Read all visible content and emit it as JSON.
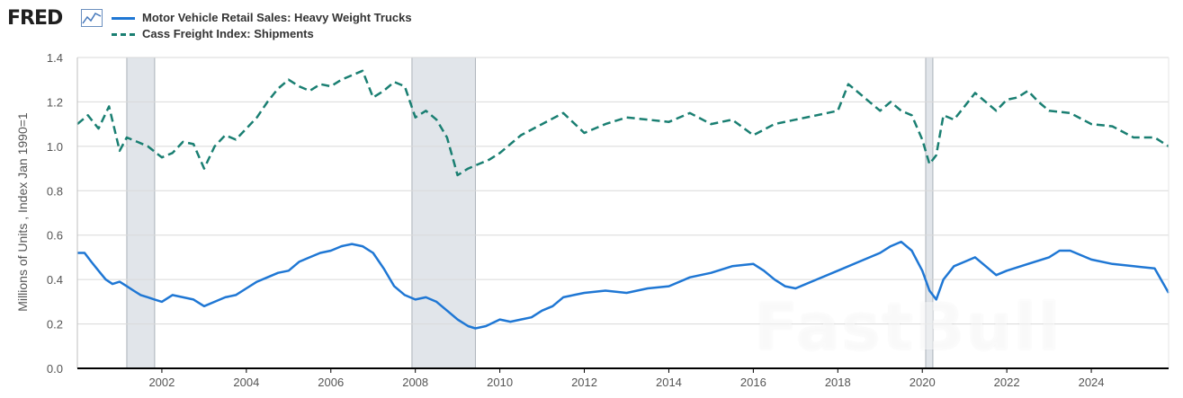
{
  "header": {
    "logo_text": "FRED",
    "logo_icon": "trend-line-icon"
  },
  "colors": {
    "trucks": "#1f77d4",
    "freight": "#1a7f72",
    "recession": "#e1e5ea",
    "grid": "#d9d9d9"
  },
  "watermark": "FastBull",
  "chart_data": {
    "type": "line",
    "title": "",
    "xlabel": "",
    "ylabel": "Millions of Units , Index Jan 1990=1",
    "xlim": [
      2000.0,
      2025.83
    ],
    "ylim": [
      0.0,
      1.4
    ],
    "yticks": [
      "0.0",
      "0.2",
      "0.4",
      "0.6",
      "0.8",
      "1.0",
      "1.2",
      "1.4"
    ],
    "xticks": [
      "2002",
      "2004",
      "2006",
      "2008",
      "2010",
      "2012",
      "2014",
      "2016",
      "2018",
      "2020",
      "2022",
      "2024"
    ],
    "legend": "top-left",
    "recessions": [
      [
        2001.17,
        2001.83
      ],
      [
        2007.92,
        2009.42
      ],
      [
        2020.08,
        2020.25
      ]
    ],
    "series": [
      {
        "name": "Motor Vehicle Retail Sales: Heavy Weight Trucks",
        "style": "solid",
        "x": [
          2000.0,
          2000.17,
          2000.33,
          2000.5,
          2000.67,
          2000.83,
          2001.0,
          2001.17,
          2001.33,
          2001.5,
          2001.67,
          2001.83,
          2002.0,
          2002.25,
          2002.5,
          2002.75,
          2003.0,
          2003.25,
          2003.5,
          2003.75,
          2004.0,
          2004.25,
          2004.5,
          2004.75,
          2005.0,
          2005.25,
          2005.5,
          2005.75,
          2006.0,
          2006.25,
          2006.5,
          2006.75,
          2007.0,
          2007.25,
          2007.5,
          2007.75,
          2008.0,
          2008.25,
          2008.5,
          2008.75,
          2009.0,
          2009.25,
          2009.42,
          2009.67,
          2010.0,
          2010.25,
          2010.5,
          2010.75,
          2011.0,
          2011.25,
          2011.5,
          2011.75,
          2012.0,
          2012.5,
          2013.0,
          2013.5,
          2014.0,
          2014.5,
          2015.0,
          2015.5,
          2016.0,
          2016.25,
          2016.5,
          2016.75,
          2017.0,
          2017.5,
          2018.0,
          2018.5,
          2019.0,
          2019.25,
          2019.5,
          2019.75,
          2020.0,
          2020.17,
          2020.33,
          2020.5,
          2020.75,
          2021.0,
          2021.25,
          2021.5,
          2021.75,
          2022.0,
          2022.5,
          2023.0,
          2023.25,
          2023.5,
          2024.0,
          2024.5,
          2025.0,
          2025.5,
          2025.83
        ],
        "values": [
          0.52,
          0.52,
          0.48,
          0.44,
          0.4,
          0.38,
          0.39,
          0.37,
          0.35,
          0.33,
          0.32,
          0.31,
          0.3,
          0.33,
          0.32,
          0.31,
          0.28,
          0.3,
          0.32,
          0.33,
          0.36,
          0.39,
          0.41,
          0.43,
          0.44,
          0.48,
          0.5,
          0.52,
          0.53,
          0.55,
          0.56,
          0.55,
          0.52,
          0.45,
          0.37,
          0.33,
          0.31,
          0.32,
          0.3,
          0.26,
          0.22,
          0.19,
          0.18,
          0.19,
          0.22,
          0.21,
          0.22,
          0.23,
          0.26,
          0.28,
          0.32,
          0.33,
          0.34,
          0.35,
          0.34,
          0.36,
          0.37,
          0.41,
          0.43,
          0.46,
          0.47,
          0.44,
          0.4,
          0.37,
          0.36,
          0.4,
          0.44,
          0.48,
          0.52,
          0.55,
          0.57,
          0.53,
          0.44,
          0.35,
          0.31,
          0.4,
          0.46,
          0.48,
          0.5,
          0.46,
          0.42,
          0.44,
          0.47,
          0.5,
          0.53,
          0.53,
          0.49,
          0.47,
          0.46,
          0.45,
          0.34
        ]
      },
      {
        "name": "Cass Freight Index: Shipments",
        "style": "dashed",
        "x": [
          2000.0,
          2000.25,
          2000.5,
          2000.75,
          2001.0,
          2001.17,
          2001.42,
          2001.67,
          2002.0,
          2002.25,
          2002.5,
          2002.75,
          2003.0,
          2003.25,
          2003.5,
          2003.75,
          2004.0,
          2004.25,
          2004.5,
          2004.75,
          2005.0,
          2005.25,
          2005.5,
          2005.75,
          2006.0,
          2006.25,
          2006.5,
          2006.75,
          2007.0,
          2007.25,
          2007.5,
          2007.75,
          2008.0,
          2008.25,
          2008.5,
          2008.75,
          2009.0,
          2009.25,
          2009.5,
          2009.75,
          2010.0,
          2010.5,
          2011.0,
          2011.5,
          2012.0,
          2012.5,
          2013.0,
          2013.5,
          2014.0,
          2014.5,
          2015.0,
          2015.5,
          2016.0,
          2016.5,
          2017.0,
          2017.5,
          2018.0,
          2018.25,
          2018.5,
          2018.75,
          2019.0,
          2019.25,
          2019.5,
          2019.75,
          2020.0,
          2020.17,
          2020.33,
          2020.5,
          2020.75,
          2021.0,
          2021.25,
          2021.5,
          2021.75,
          2022.0,
          2022.25,
          2022.5,
          2022.75,
          2023.0,
          2023.5,
          2024.0,
          2024.5,
          2025.0,
          2025.5,
          2025.83
        ],
        "values": [
          1.1,
          1.14,
          1.08,
          1.18,
          0.98,
          1.04,
          1.02,
          1.0,
          0.95,
          0.97,
          1.02,
          1.01,
          0.9,
          1.0,
          1.05,
          1.03,
          1.08,
          1.13,
          1.2,
          1.26,
          1.3,
          1.27,
          1.25,
          1.28,
          1.27,
          1.3,
          1.32,
          1.34,
          1.22,
          1.25,
          1.29,
          1.27,
          1.13,
          1.16,
          1.12,
          1.04,
          0.87,
          0.9,
          0.92,
          0.94,
          0.97,
          1.05,
          1.1,
          1.15,
          1.06,
          1.1,
          1.13,
          1.12,
          1.11,
          1.15,
          1.1,
          1.12,
          1.05,
          1.1,
          1.12,
          1.14,
          1.16,
          1.28,
          1.24,
          1.2,
          1.16,
          1.2,
          1.16,
          1.14,
          1.03,
          0.92,
          0.96,
          1.14,
          1.12,
          1.18,
          1.24,
          1.2,
          1.16,
          1.21,
          1.22,
          1.25,
          1.2,
          1.16,
          1.15,
          1.1,
          1.09,
          1.04,
          1.04,
          1.0
        ]
      }
    ]
  }
}
